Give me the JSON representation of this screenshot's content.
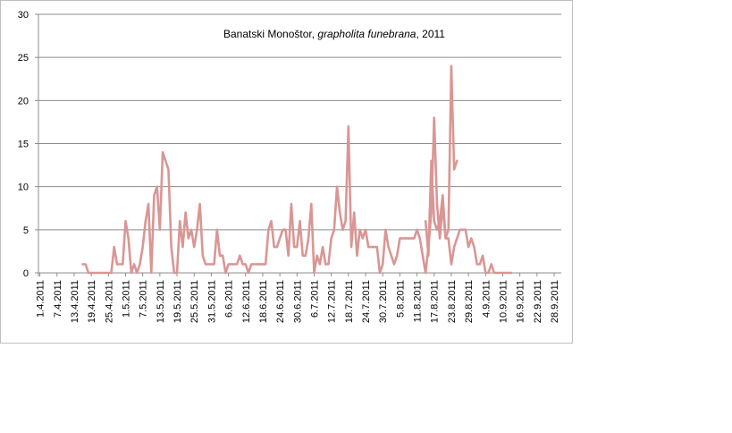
{
  "chart_data": {
    "type": "line",
    "title_parts": {
      "prefix": "Banatski Monoštor, ",
      "species": "grapholita funebrana",
      "suffix": ", 2011"
    },
    "xlabel": "",
    "ylabel": "",
    "ylim": [
      0,
      30
    ],
    "yticks": [
      0,
      5,
      10,
      15,
      20,
      25,
      30
    ],
    "grid": "horizontal",
    "legend": "none",
    "line_color": "#d99694",
    "tick_labels": [
      "1.4.2011",
      "7.4.2011",
      "13.4.2011",
      "19.4.2011",
      "25.4.2011",
      "1.5.2011",
      "7.5.2011",
      "13.5.2011",
      "19.5.2011",
      "25.5.2011",
      "31.5.2011",
      "6.6.2011",
      "12.6.2011",
      "18.6.2011",
      "24.6.2011",
      "30.6.2011",
      "6.7.2011",
      "12.7.2011",
      "18.7.2011",
      "24.7.2011",
      "30.7.2011",
      "5.8.2011",
      "11.8.2011",
      "17.8.2011",
      "23.8.2011",
      "29.8.2011",
      "4.9.2011",
      "10.9.2011",
      "16.9.2011",
      "22.9.2011",
      "28.9.2011"
    ],
    "start_date": "1.4.2011",
    "series": [
      {
        "segments": [
          {
            "start": "16.4.2011",
            "values": [
              1,
              1,
              0,
              0,
              0,
              0,
              0,
              0,
              0,
              0,
              0,
              3,
              1,
              1,
              1,
              6,
              4,
              0,
              1,
              0,
              1,
              3,
              6,
              8,
              0,
              9,
              10,
              5,
              14,
              13,
              12,
              3,
              0,
              0,
              6,
              3,
              7,
              4,
              5,
              3,
              5,
              8,
              2,
              1,
              1,
              1,
              1,
              5,
              2,
              2,
              0,
              1,
              1,
              1,
              1,
              2,
              1,
              1,
              0,
              1,
              1,
              1,
              1,
              1,
              1,
              5,
              6,
              3,
              3,
              4,
              5,
              5,
              2,
              8,
              3,
              3,
              6,
              2,
              2,
              4,
              8,
              0,
              2,
              1,
              3,
              1,
              1,
              4,
              5,
              10,
              7,
              5,
              6,
              17,
              3,
              7,
              2,
              5,
              4,
              5,
              3,
              3,
              3,
              3,
              0,
              1,
              5,
              3,
              2,
              1,
              2,
              4,
              4,
              4,
              4,
              4,
              4,
              5,
              4,
              2,
              0,
              3,
              7,
              18,
              8,
              4,
              8,
              4,
              5,
              24,
              12,
              13
            ]
          },
          {
            "start": "14.8.2011",
            "values": [
              6,
              2,
              13,
              6,
              5,
              6,
              9,
              4,
              4,
              1,
              3,
              4,
              5,
              5,
              5,
              3,
              4,
              3,
              1,
              1,
              2,
              0,
              0,
              1,
              0,
              0,
              0,
              0,
              0,
              0,
              0
            ]
          }
        ]
      }
    ]
  }
}
